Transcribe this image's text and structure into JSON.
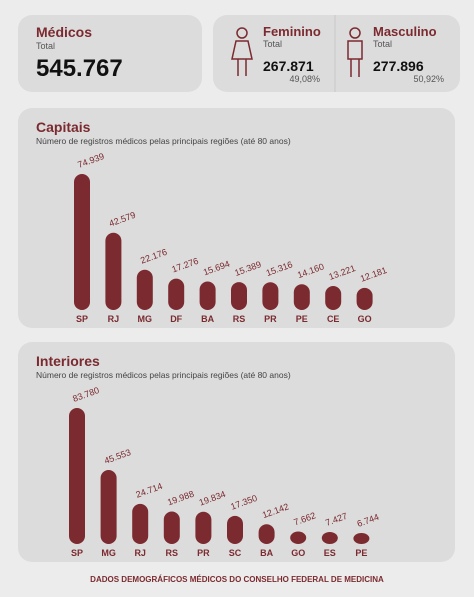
{
  "summary": {
    "title": "Médicos",
    "label": "Total",
    "value": "545.767"
  },
  "female": {
    "title": "Feminino",
    "label": "Total",
    "value": "267.871",
    "share": "49,08%"
  },
  "male": {
    "title": "Masculino",
    "label": "Total",
    "value": "277.896",
    "share": "50,92%"
  },
  "chart_data": [
    {
      "type": "bar",
      "title": "Capitais",
      "subtitle": "Número de registros médicos pelas principais regiões (até 80 anos)",
      "categories": [
        "SP",
        "RJ",
        "MG",
        "DF",
        "BA",
        "RS",
        "PR",
        "PE",
        "CE",
        "GO"
      ],
      "values": [
        74939,
        42579,
        22176,
        17276,
        15694,
        15389,
        15316,
        14160,
        13221,
        12181
      ],
      "value_labels": [
        "74.939",
        "42.579",
        "22.176",
        "17.276",
        "15.694",
        "15.389",
        "15.316",
        "14.160",
        "13.221",
        "12.181"
      ],
      "color": "#7b2a2f"
    },
    {
      "type": "bar",
      "title": "Interiores",
      "subtitle": "Número de registros médicos pelas principais regiões (até 80 anos)",
      "categories": [
        "SP",
        "MG",
        "RJ",
        "RS",
        "PR",
        "SC",
        "BA",
        "GO",
        "ES",
        "PE"
      ],
      "values": [
        83780,
        45553,
        24714,
        19988,
        19834,
        17350,
        12142,
        7662,
        7427,
        6744
      ],
      "value_labels": [
        "83.780",
        "45.553",
        "24.714",
        "19.988",
        "19.834",
        "17.350",
        "12.142",
        "7.662",
        "7.427",
        "6.744"
      ],
      "color": "#7b2a2f"
    }
  ],
  "footer": "DADOS DEMOGRÁFICOS MÉDICOS DO CONSELHO FEDERAL DE MEDICINA"
}
